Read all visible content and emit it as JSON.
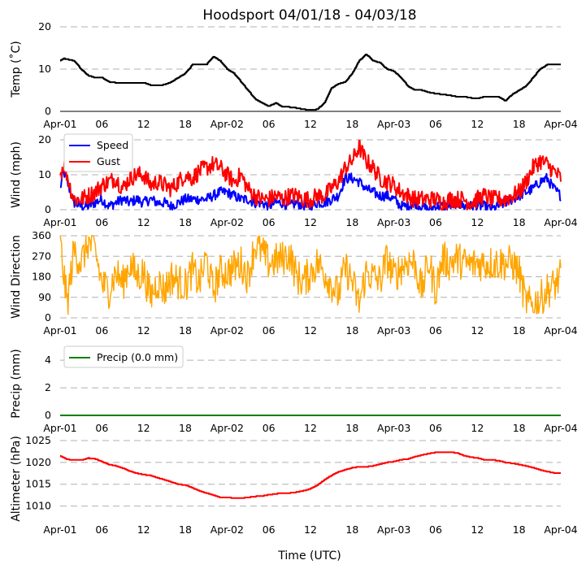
{
  "chart_data": {
    "title": "Hoodsport 04/01/18 - 04/03/18",
    "xlabel": "Time (UTC)",
    "x_unit": "hours since 2018-04-01 00:00 UTC",
    "x_range": [
      0,
      72
    ],
    "x_ticks": [
      {
        "pos": 0,
        "label": "Apr-01"
      },
      {
        "pos": 6,
        "label": "06"
      },
      {
        "pos": 12,
        "label": "12"
      },
      {
        "pos": 18,
        "label": "18"
      },
      {
        "pos": 24,
        "label": "Apr-02"
      },
      {
        "pos": 30,
        "label": "06"
      },
      {
        "pos": 36,
        "label": "12"
      },
      {
        "pos": 42,
        "label": "18"
      },
      {
        "pos": 48,
        "label": "Apr-03"
      },
      {
        "pos": 54,
        "label": "06"
      },
      {
        "pos": 60,
        "label": "12"
      },
      {
        "pos": 66,
        "label": "18"
      },
      {
        "pos": 72,
        "label": "Apr-04"
      }
    ],
    "panels": [
      {
        "name": "temp",
        "type": "line",
        "ylabel": "Temp ($^\\circ$C)",
        "ylabel_display": "Temp (˚C)",
        "ylim": [
          0,
          20
        ],
        "yticks": [
          0,
          10,
          20
        ],
        "show_bottom_axis": true,
        "series": [
          {
            "name": "Temp",
            "color": "#000000",
            "step": true,
            "x": [
              0,
              0.5,
              2,
              3,
              4,
              5,
              6,
              7,
              8,
              10,
              12,
              13,
              14,
              15,
              16,
              17,
              18,
              19,
              20,
              21,
              22,
              23,
              24,
              25,
              26,
              27,
              28,
              29,
              30,
              31,
              32,
              33,
              34,
              35,
              36,
              37,
              38,
              39,
              40,
              41,
              42,
              43,
              44,
              45,
              46,
              47,
              48,
              49,
              50,
              51,
              52,
              53,
              54,
              55,
              56,
              57,
              58,
              59,
              60,
              61,
              62,
              63,
              64,
              65,
              66,
              67,
              68,
              69,
              70,
              71,
              72
            ],
            "y": [
              12,
              12.5,
              12,
              10,
              8.5,
              8,
              8,
              7,
              6.8,
              6.8,
              6.8,
              6.2,
              6.2,
              6.3,
              7,
              8,
              9,
              11,
              11,
              11,
              13,
              12,
              10,
              9,
              7,
              5,
              3,
              2,
              1.2,
              2,
              1,
              1,
              0.8,
              0.5,
              0.3,
              0.5,
              2,
              5.5,
              6.5,
              7,
              9,
              12,
              13.5,
              12,
              11.5,
              10,
              9.5,
              8,
              6,
              5,
              5,
              4.5,
              4.2,
              4,
              3.8,
              3.5,
              3.5,
              3.2,
              3,
              3.5,
              3.5,
              3.5,
              2.5,
              4,
              5,
              6,
              8,
              10,
              11,
              11,
              11
            ]
          }
        ]
      },
      {
        "name": "wind",
        "type": "line",
        "ylabel": "Wind (mph)",
        "ylim": [
          0,
          20
        ],
        "yticks": [
          0,
          10,
          20
        ],
        "legend": {
          "position": "upper left",
          "entries": [
            "Speed",
            "Gust"
          ]
        },
        "series": [
          {
            "name": "Speed",
            "color": "#0000ff",
            "x": [
              0,
              0.5,
              1,
              1.5,
              2,
              3,
              4,
              5,
              6,
              7,
              8,
              9,
              10,
              11,
              12,
              13,
              14,
              15,
              16,
              17,
              18,
              19,
              20,
              21,
              22,
              23,
              24,
              25,
              26,
              27,
              28,
              29,
              30,
              31,
              32,
              33,
              34,
              35,
              36,
              37,
              38,
              39,
              40,
              41,
              42,
              43,
              44,
              45,
              46,
              47,
              48,
              49,
              50,
              51,
              52,
              53,
              54,
              55,
              56,
              57,
              58,
              59,
              60,
              61,
              62,
              63,
              64,
              65,
              66,
              67,
              68,
              69,
              70,
              71,
              72
            ],
            "y": [
              6,
              11,
              8,
              5,
              2,
              1,
              1,
              2,
              3,
              1,
              2,
              3,
              2,
              3,
              2,
              3,
              2,
              2,
              1,
              2,
              3,
              3,
              3,
              3,
              4,
              5,
              5,
              4,
              3,
              3,
              2,
              2,
              1,
              2,
              2,
              1,
              2,
              1,
              1,
              2,
              2,
              3,
              4,
              9,
              9,
              8,
              6,
              5,
              4,
              4,
              3,
              1,
              1,
              2,
              1,
              0,
              1,
              1,
              1,
              2,
              1,
              1,
              1,
              1,
              0,
              1,
              2,
              3,
              4,
              5,
              6,
              8,
              9,
              6,
              4
            ]
          },
          {
            "name": "Gust",
            "color": "#ff0000",
            "x": [
              0,
              0.5,
              1,
              1.5,
              2,
              3,
              4,
              5,
              6,
              7,
              8,
              9,
              10,
              11,
              12,
              13,
              14,
              15,
              16,
              17,
              18,
              19,
              20,
              21,
              22,
              23,
              24,
              25,
              26,
              27,
              28,
              29,
              30,
              31,
              32,
              33,
              34,
              35,
              36,
              37,
              38,
              39,
              40,
              41,
              42,
              43,
              44,
              45,
              46,
              47,
              48,
              49,
              50,
              51,
              52,
              53,
              54,
              55,
              56,
              57,
              58,
              59,
              60,
              61,
              62,
              63,
              64,
              65,
              66,
              67,
              68,
              69,
              70,
              71,
              72
            ],
            "y": [
              10,
              13,
              10,
              6,
              3,
              3,
              4,
              5,
              7,
              8,
              9,
              6,
              9,
              10,
              10,
              7,
              8,
              7,
              6,
              8,
              10,
              9,
              11,
              12,
              13,
              12,
              10,
              8,
              10,
              6,
              4,
              3,
              3,
              4,
              3,
              4,
              4,
              3,
              3,
              4,
              4,
              6,
              8,
              12,
              14,
              18,
              14,
              12,
              9,
              8,
              7,
              5,
              4,
              3,
              3,
              3,
              3,
              2,
              3,
              3,
              3,
              2,
              3,
              4,
              3,
              3,
              3,
              4,
              5,
              8,
              12,
              14,
              13,
              11,
              9
            ]
          }
        ]
      },
      {
        "name": "wind_direction",
        "type": "line",
        "ylabel": "Wind Direction",
        "ylim": [
          0,
          360
        ],
        "yticks": [
          0,
          90,
          180,
          270,
          360
        ],
        "series": [
          {
            "name": "Direction",
            "color": "#ffa500",
            "jagged": true,
            "x": [
              0,
              1,
              2,
              3,
              4,
              5,
              6,
              7,
              8,
              9,
              10,
              11,
              12,
              13,
              14,
              15,
              16,
              17,
              18,
              19,
              20,
              21,
              22,
              23,
              24,
              25,
              26,
              27,
              28,
              29,
              30,
              31,
              32,
              33,
              34,
              35,
              36,
              37,
              38,
              39,
              40,
              41,
              42,
              43,
              44,
              45,
              46,
              47,
              48,
              49,
              50,
              51,
              52,
              53,
              54,
              55,
              56,
              57,
              58,
              59,
              60,
              61,
              62,
              63,
              64,
              65,
              66,
              67,
              68,
              69,
              70,
              71,
              72
            ],
            "y": [
              330,
              60,
              300,
              240,
              330,
              300,
              150,
              120,
              200,
              150,
              240,
              180,
              200,
              90,
              160,
              120,
              180,
              160,
              140,
              210,
              150,
              260,
              120,
              200,
              200,
              220,
              240,
              180,
              320,
              290,
              240,
              250,
              260,
              280,
              180,
              160,
              200,
              240,
              200,
              150,
              100,
              220,
              160,
              60,
              200,
              180,
              160,
              260,
              180,
              220,
              250,
              240,
              120,
              250,
              120,
              260,
              240,
              260,
              240,
              230,
              240,
              240,
              240,
              240,
              240,
              240,
              200,
              60,
              60,
              80,
              120,
              140,
              180
            ]
          }
        ]
      },
      {
        "name": "precip",
        "type": "line",
        "ylabel": "Precip (mm)",
        "ylim": [
          0,
          4.6
        ],
        "yticks": [
          0,
          2,
          4
        ],
        "legend": {
          "position": "upper left",
          "entries": [
            "Precip (0.0 mm)"
          ]
        },
        "series": [
          {
            "name": "Precip (0.0 mm)",
            "color": "#008000",
            "x": [
              0,
              72
            ],
            "y": [
              0,
              0
            ]
          }
        ]
      },
      {
        "name": "altimeter",
        "type": "line",
        "ylabel": "Altimeter (hPa)",
        "ylim": [
          1007.5,
          1025
        ],
        "yticks": [
          1010,
          1015,
          1020,
          1025
        ],
        "series": [
          {
            "name": "Altimeter",
            "color": "#ff0000",
            "step": true,
            "x": [
              0,
              1,
              2,
              3,
              4,
              5,
              6,
              7,
              8,
              9,
              10,
              11,
              12,
              13,
              14,
              15,
              16,
              17,
              18,
              19,
              20,
              21,
              22,
              23,
              24,
              25,
              26,
              27,
              28,
              29,
              30,
              31,
              32,
              33,
              34,
              35,
              36,
              37,
              38,
              39,
              40,
              41,
              42,
              43,
              44,
              45,
              46,
              47,
              48,
              49,
              50,
              51,
              52,
              53,
              54,
              55,
              56,
              57,
              58,
              59,
              60,
              61,
              62,
              63,
              64,
              65,
              66,
              67,
              68,
              69,
              70,
              71,
              72
            ],
            "y": [
              1021.5,
              1020.7,
              1020.5,
              1020.5,
              1021,
              1020.8,
              1020.2,
              1019.5,
              1019.2,
              1018.7,
              1018,
              1017.5,
              1017.2,
              1017,
              1016.5,
              1016,
              1015.5,
              1015,
              1014.8,
              1014.2,
              1013.5,
              1013,
              1012.5,
              1012,
              1012,
              1011.8,
              1011.8,
              1012,
              1012.2,
              1012.3,
              1012.6,
              1012.8,
              1013,
              1013,
              1013.2,
              1013.5,
              1014,
              1014.8,
              1016,
              1017,
              1017.8,
              1018.3,
              1018.8,
              1019,
              1019,
              1019.2,
              1019.6,
              1020,
              1020.2,
              1020.6,
              1020.8,
              1021.3,
              1021.7,
              1022,
              1022.3,
              1022.3,
              1022.3,
              1022.2,
              1021.6,
              1021.2,
              1021,
              1020.6,
              1020.6,
              1020.4,
              1020,
              1019.8,
              1019.5,
              1019.2,
              1018.8,
              1018.3,
              1017.9,
              1017.6,
              1017.5
            ]
          }
        ]
      }
    ]
  }
}
